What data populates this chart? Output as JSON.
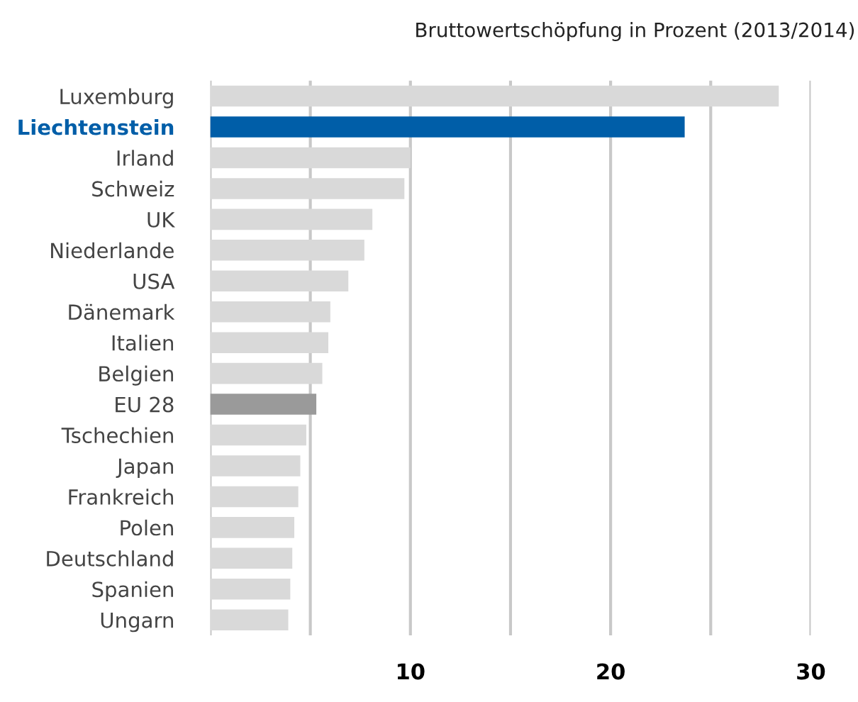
{
  "chart_data": {
    "type": "bar",
    "orientation": "horizontal",
    "title": "Bruttowertschöpfung in Prozent (2013/2014)",
    "categories": [
      "Luxemburg",
      "Liechtenstein",
      "Irland",
      "Schweiz",
      "UK",
      "Niederlande",
      "USA",
      "Dänemark",
      "Italien",
      "Belgien",
      "EU 28",
      "Tschechien",
      "Japan",
      "Frankreich",
      "Polen",
      "Deutschland",
      "Spanien",
      "Ungarn"
    ],
    "values": [
      28.4,
      23.7,
      10.0,
      9.7,
      8.1,
      7.7,
      6.9,
      6.0,
      5.9,
      5.6,
      5.3,
      4.8,
      4.5,
      4.4,
      4.2,
      4.1,
      4.0,
      3.9
    ],
    "colors": [
      "#d9d9d9",
      "#005ea8",
      "#d9d9d9",
      "#d9d9d9",
      "#d9d9d9",
      "#d9d9d9",
      "#d9d9d9",
      "#d9d9d9",
      "#d9d9d9",
      "#d9d9d9",
      "#9a9a9a",
      "#d9d9d9",
      "#d9d9d9",
      "#d9d9d9",
      "#d9d9d9",
      "#d9d9d9",
      "#d9d9d9",
      "#d9d9d9"
    ],
    "xlim": [
      0,
      30
    ],
    "xticks": [
      {
        "value": 0,
        "label": null
      },
      {
        "value": 5,
        "label": null
      },
      10,
      {
        "value": 15,
        "label": null
      },
      20,
      {
        "value": 25,
        "label": null
      },
      30
    ],
    "grid": "x",
    "legend": false
  }
}
